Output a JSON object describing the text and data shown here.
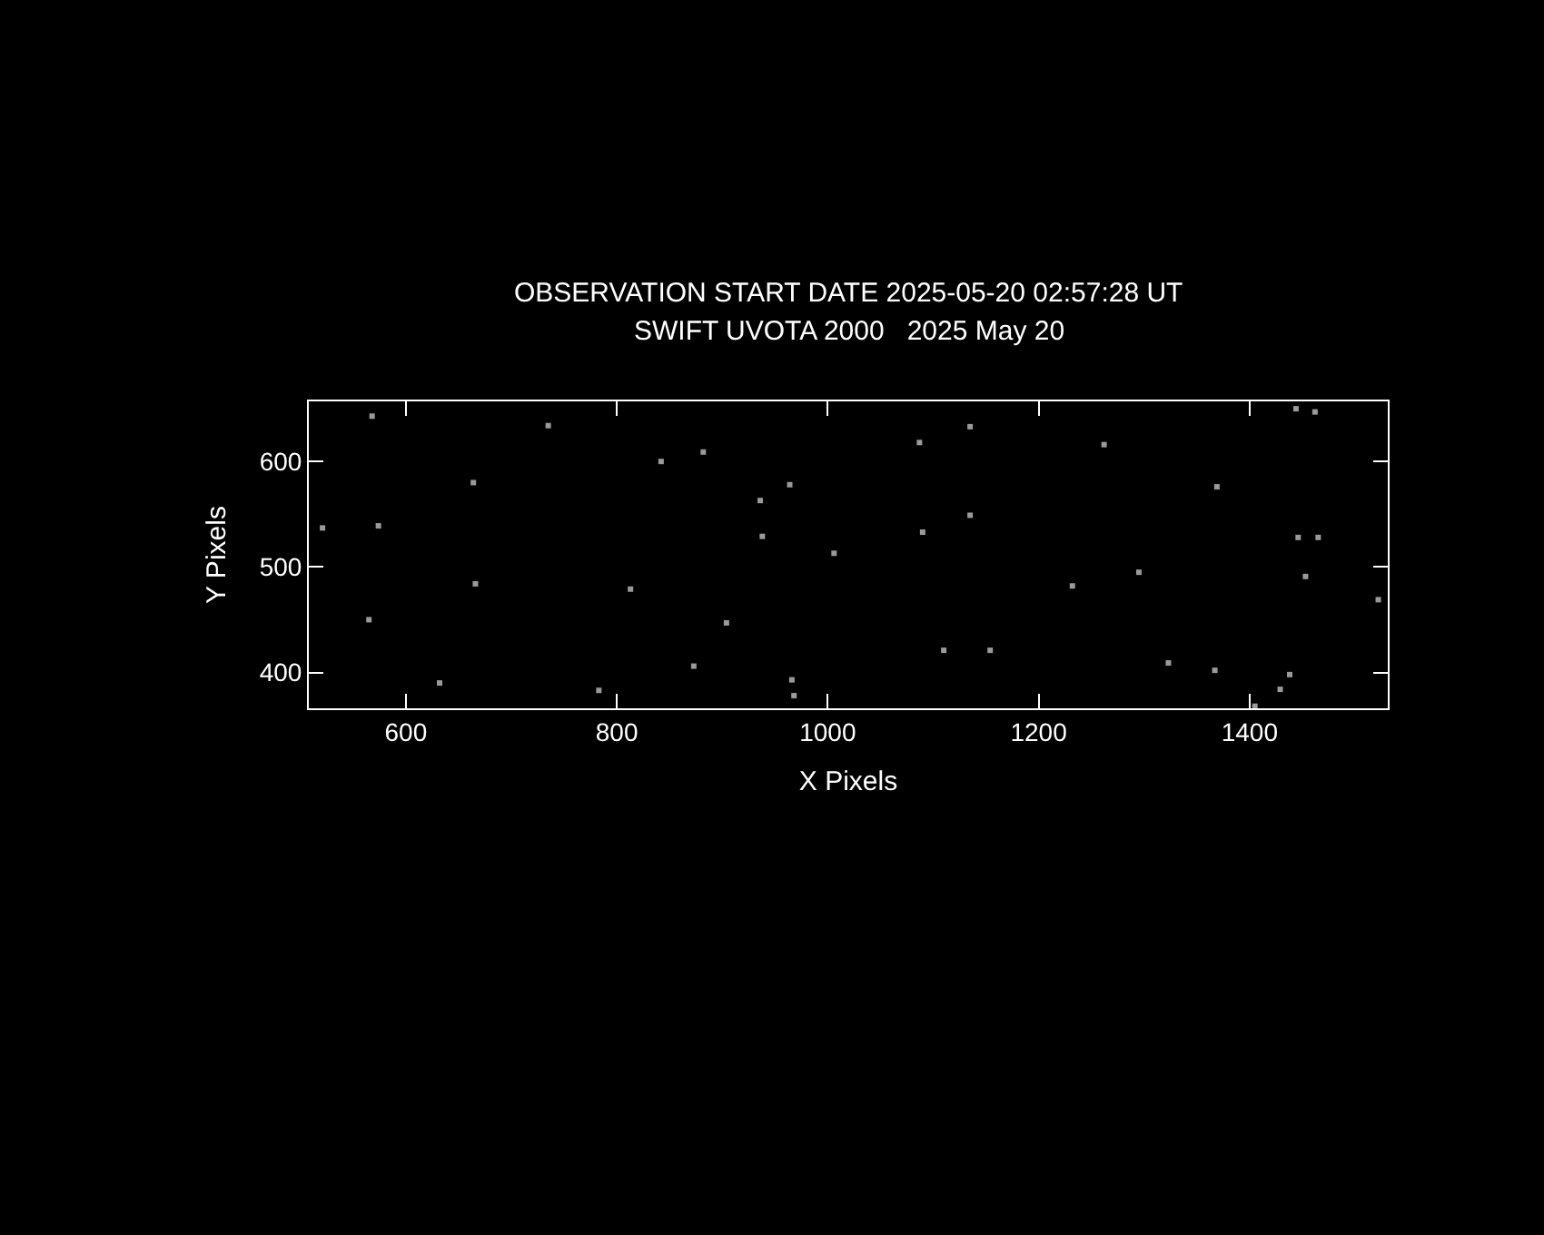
{
  "chart_data": {
    "type": "scatter",
    "title": "OBSERVATION START DATE 2025-05-20 02:57:28 UT",
    "subtitle": "SWIFT UVOTA 2000   2025 May 20",
    "xlabel": "X Pixels",
    "ylabel": "Y Pixels",
    "x": [
      568,
      735,
      664,
      521,
      574,
      666,
      565,
      632,
      783,
      842,
      882,
      964,
      936,
      938,
      1006,
      813,
      904,
      873,
      966,
      968,
      1087,
      1135,
      1135,
      1090,
      1110,
      1154,
      1262,
      1369,
      1295,
      1232,
      1323,
      1367,
      1438,
      1429,
      1405,
      1444,
      1462,
      1446,
      1465,
      1453,
      1522
    ],
    "series": [
      {
        "color": "#9a9a9a",
        "values": [
          643,
          634,
          580,
          537,
          539,
          484,
          450,
          390,
          383,
          600,
          609,
          578,
          563,
          529,
          513,
          479,
          447,
          406,
          393,
          378,
          618,
          633,
          549,
          533,
          421,
          421,
          616,
          576,
          495,
          482,
          409,
          402,
          398,
          384,
          368,
          650,
          647,
          528,
          528,
          491,
          469
        ]
      }
    ],
    "xlim": [
      508,
      1531
    ],
    "xticks": [
      600,
      800,
      1000,
      1200,
      1400
    ],
    "ylim": [
      366,
      657
    ],
    "yticks": [
      400,
      500,
      600
    ],
    "grid": false,
    "marker": "square"
  }
}
